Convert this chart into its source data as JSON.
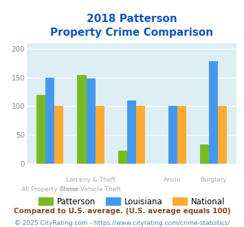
{
  "title_line1": "2018 Patterson",
  "title_line2": "Property Crime Comparison",
  "patterson_values": [
    120,
    155,
    22,
    0,
    33
  ],
  "louisiana_values": [
    150,
    149,
    110,
    100,
    178
  ],
  "national_values": [
    100,
    100,
    100,
    100,
    100
  ],
  "patterson_color": "#77bb22",
  "louisiana_color": "#4499ee",
  "national_color": "#ffaa33",
  "ylim": [
    0,
    210
  ],
  "yticks": [
    0,
    50,
    100,
    150,
    200
  ],
  "legend_labels": [
    "Patterson",
    "Louisiana",
    "National"
  ],
  "footnote1": "Compared to U.S. average. (U.S. average equals 100)",
  "footnote2": "© 2025 CityRating.com - https://www.cityrating.com/crime-statistics/",
  "title_color": "#1155bb",
  "footnote1_color": "#884422",
  "footnote2_color": "#4488bb",
  "bg_color": "#ddeef5",
  "bar_width": 0.22,
  "label_row1": [
    "",
    "Larceny & Theft",
    "",
    "Arson",
    "Burglary"
  ],
  "label_row2": [
    "All Property Crime",
    "Motor Vehicle Theft",
    "",
    "",
    ""
  ]
}
